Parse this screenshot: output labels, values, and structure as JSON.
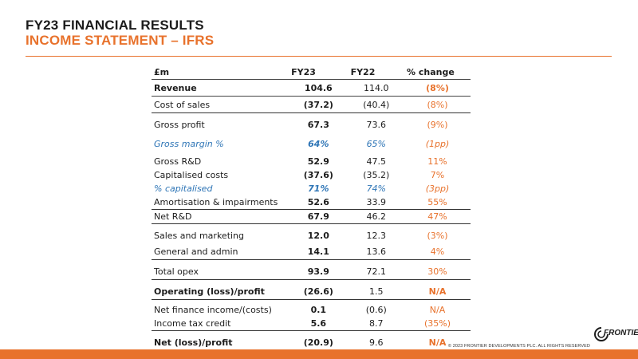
{
  "header": {
    "title": "FY23 FINANCIAL RESULTS",
    "subtitle": "INCOME STATEMENT – IFRS"
  },
  "table": {
    "columns": [
      "£m",
      "FY23",
      "FY22",
      "% change"
    ],
    "rows": [
      [
        "Revenue",
        "104.6",
        "114.0",
        "(8%)"
      ],
      [
        "Cost of sales",
        "(37.2)",
        "(40.4)",
        "(8%)"
      ],
      [
        "Gross profit",
        "67.3",
        "73.6",
        "(9%)"
      ],
      [
        "Gross margin %",
        "64%",
        "65%",
        "(1pp)"
      ],
      [
        "Gross R&D",
        "52.9",
        "47.5",
        "11%"
      ],
      [
        "Capitalised costs",
        "(37.6)",
        "(35.2)",
        "7%"
      ],
      [
        "% capitalised",
        "71%",
        "74%",
        "(3pp)"
      ],
      [
        "Amortisation & impairments",
        "52.6",
        "33.9",
        "55%"
      ],
      [
        "Net R&D",
        "67.9",
        "46.2",
        "47%"
      ],
      [
        "Sales and marketing",
        "12.0",
        "12.3",
        "(3%)"
      ],
      [
        "General and admin",
        "14.1",
        "13.6",
        "4%"
      ],
      [
        "Total opex",
        "93.9",
        "72.1",
        "30%"
      ],
      [
        "Operating (loss)/profit",
        "(26.6)",
        "1.5",
        "N/A"
      ],
      [
        "Net finance income/(costs)",
        "0.1",
        "(0.6)",
        "N/A"
      ],
      [
        "Income tax credit",
        "5.6",
        "8.7",
        "(35%)"
      ],
      [
        "Net (loss)/profit",
        "(20.9)",
        "9.6",
        "N/A"
      ]
    ]
  },
  "footer": {
    "copyright": "© 2023 FRONTIER DEVELOPMENTS PLC. ALL RIGHTS RESERVED",
    "logo_text": "FRONTIER"
  },
  "colors": {
    "accent": "#e8722c",
    "italic_blue": "#2e75b6",
    "text": "#1c1c1c"
  }
}
